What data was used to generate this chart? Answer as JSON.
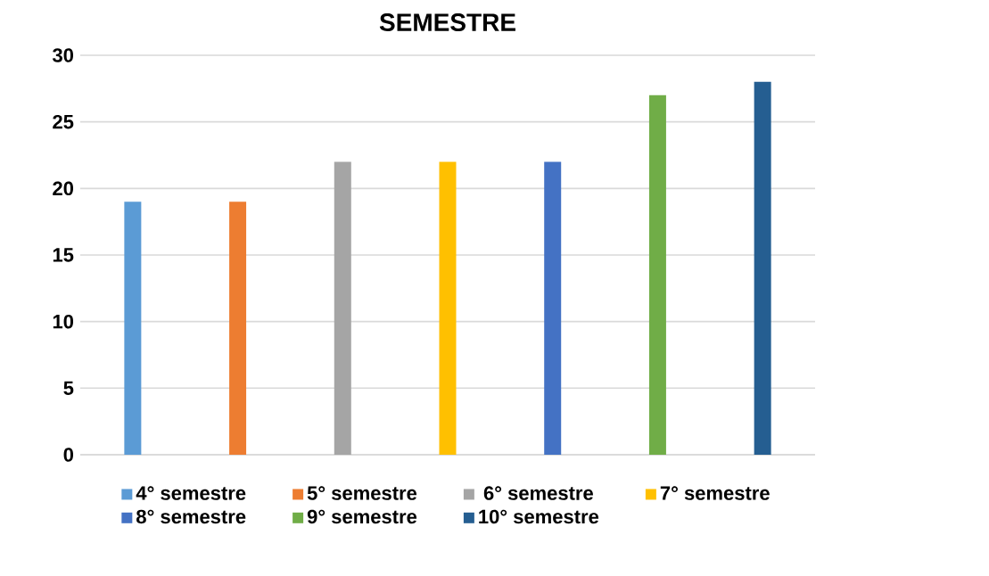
{
  "chart_data": {
    "type": "bar",
    "title": "SEMESTRE",
    "categories": [
      null,
      null,
      null,
      null,
      null,
      null,
      null
    ],
    "series": [
      {
        "name": "4° semestre",
        "color": "#5b9bd5",
        "values": [
          19,
          null,
          null,
          null,
          null,
          null,
          null
        ]
      },
      {
        "name": "5° semestre",
        "color": "#ed7d31",
        "values": [
          null,
          19,
          null,
          null,
          null,
          null,
          null
        ]
      },
      {
        "name": "6° semestre",
        "color": "#a5a5a5",
        "values": [
          null,
          null,
          22,
          null,
          null,
          null,
          null
        ]
      },
      {
        "name": "7° semestre",
        "color": "#ffc000",
        "values": [
          null,
          null,
          null,
          22,
          null,
          null,
          null
        ]
      },
      {
        "name": "8° semestre",
        "color": "#4472c4",
        "values": [
          null,
          null,
          null,
          null,
          22,
          null,
          null
        ]
      },
      {
        "name": "9° semestre",
        "color": "#70ad47",
        "values": [
          null,
          null,
          null,
          null,
          null,
          27,
          null
        ]
      },
      {
        "name": "10° semestre",
        "color": "#255e91",
        "values": [
          null,
          null,
          null,
          null,
          null,
          null,
          28
        ]
      }
    ],
    "ylim": [
      0,
      30
    ],
    "yticks": [
      0,
      5,
      10,
      15,
      20,
      25,
      30
    ],
    "grid": "y",
    "legend": "bottom"
  }
}
